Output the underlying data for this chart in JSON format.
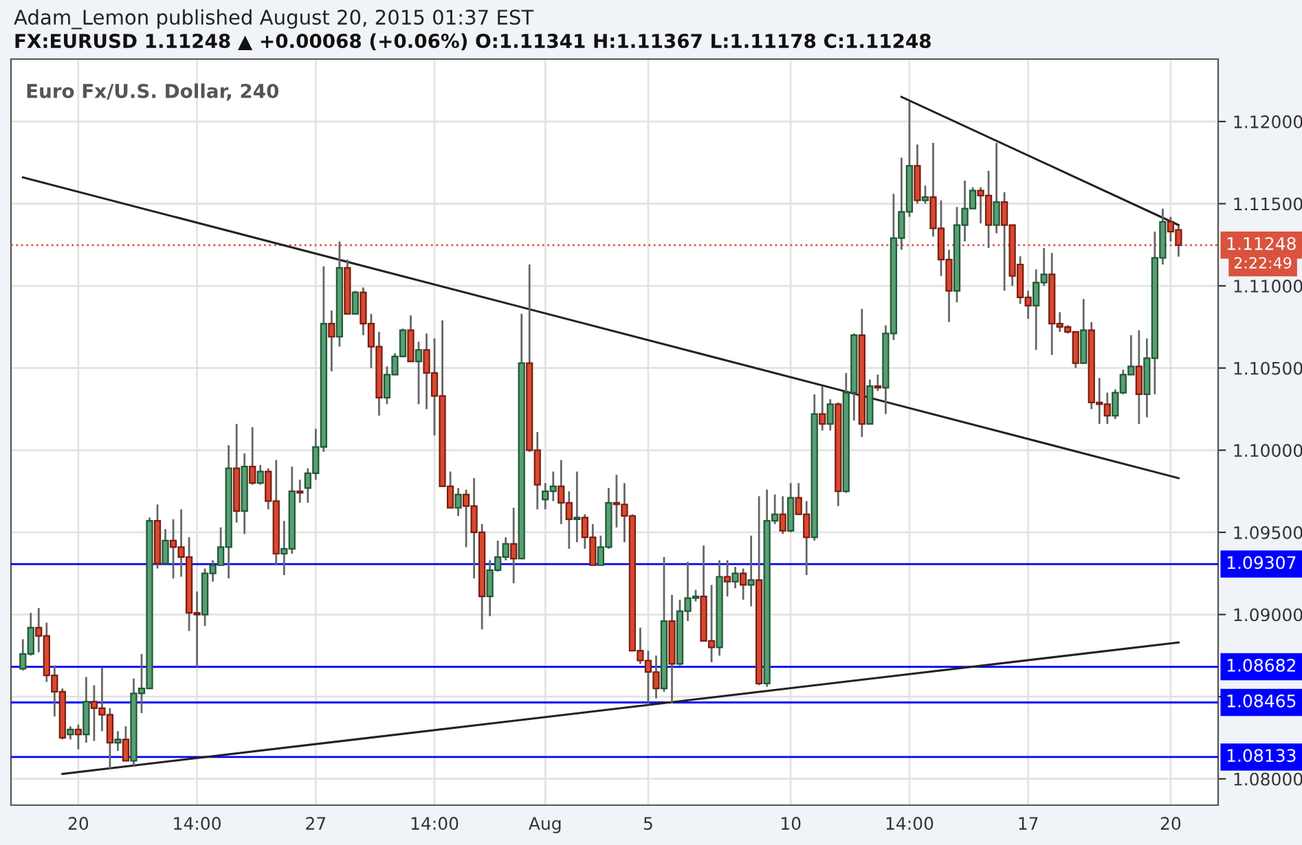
{
  "chart_data": {
    "type": "candlestick",
    "title": "Adam_Lemon published August 20, 2015 01:37 EST",
    "subtitle": "FX:EURUSD 1.11248 ▲ +0.00068 (+0.06%) O:1.11341 H:1.11367 L:1.11178 C:1.11248",
    "annotations": [
      "Euro Fx/U.S. Dollar, 240",
      "2:22:49"
    ],
    "categories": [
      null,
      null,
      null,
      null,
      null,
      null,
      null,
      "20",
      null,
      null,
      null,
      null,
      null,
      null,
      null,
      null,
      null,
      null,
      null,
      null,
      null,
      null,
      "14:00",
      null,
      null,
      null,
      null,
      null,
      null,
      null,
      null,
      null,
      null,
      null,
      null,
      null,
      null,
      "27",
      null,
      null,
      null,
      null,
      null,
      null,
      null,
      null,
      null,
      null,
      null,
      null,
      null,
      null,
      "14:00",
      null,
      null,
      null,
      null,
      null,
      null,
      null,
      null,
      null,
      null,
      null,
      null,
      null,
      "Aug",
      null,
      null,
      null,
      null,
      null,
      null,
      null,
      null,
      null,
      null,
      null,
      null,
      "5",
      null,
      null,
      null,
      null,
      null,
      null,
      null,
      null,
      null,
      null,
      null,
      null,
      null,
      null,
      null,
      null,
      null,
      "10",
      null,
      null,
      null,
      null,
      null,
      null,
      null,
      null,
      null,
      null,
      null,
      null,
      null,
      null,
      "14:00",
      null,
      null,
      null,
      null,
      null,
      null,
      null,
      null,
      null,
      null,
      null,
      null,
      null,
      null,
      "17",
      null,
      null,
      null,
      null,
      null,
      null,
      null,
      null,
      null,
      null,
      null,
      null,
      null,
      null,
      null,
      null,
      null,
      "20",
      null
    ],
    "ohlc": [
      [
        1.0867,
        1.0885,
        1.0866,
        1.0876
      ],
      [
        1.0876,
        1.0901,
        1.0875,
        1.0892
      ],
      [
        1.0892,
        1.0904,
        1.0877,
        1.0887
      ],
      [
        1.0887,
        1.0895,
        1.0859,
        1.0863
      ],
      [
        1.0863,
        1.0869,
        1.0838,
        1.0853
      ],
      [
        1.0853,
        1.0855,
        1.0824,
        1.0825
      ],
      [
        1.0827,
        1.0832,
        1.0824,
        1.083
      ],
      [
        1.083,
        1.0833,
        1.0818,
        1.0827
      ],
      [
        1.0827,
        1.0862,
        1.0822,
        1.0847
      ],
      [
        1.0847,
        1.0857,
        1.0823,
        1.0843
      ],
      [
        1.0843,
        1.0868,
        1.0829,
        1.0839
      ],
      [
        1.0839,
        1.0843,
        1.0806,
        1.0822
      ],
      [
        1.0822,
        1.0829,
        1.0817,
        1.0824
      ],
      [
        1.0824,
        1.0832,
        1.0811,
        1.0811
      ],
      [
        1.0811,
        1.0861,
        1.0808,
        1.0852
      ],
      [
        1.0852,
        1.0876,
        1.084,
        1.0855
      ],
      [
        1.0855,
        1.0959,
        1.0855,
        1.0957
      ],
      [
        1.0957,
        1.0967,
        1.0928,
        1.0931
      ],
      [
        1.0931,
        1.0952,
        1.0931,
        1.0945
      ],
      [
        1.0945,
        1.0958,
        1.0922,
        1.0941
      ],
      [
        1.0941,
        1.0964,
        1.0923,
        1.0935
      ],
      [
        1.0935,
        1.0947,
        1.089,
        1.0901
      ],
      [
        1.0901,
        1.0914,
        1.0868,
        1.09
      ],
      [
        1.09,
        1.0928,
        1.0893,
        1.0925
      ],
      [
        1.0925,
        1.0933,
        1.092,
        1.093
      ],
      [
        1.093,
        1.0953,
        1.093,
        1.0941
      ],
      [
        1.0941,
        1.1003,
        1.0922,
        1.0989
      ],
      [
        1.0989,
        1.1016,
        1.0956,
        1.0963
      ],
      [
        1.0963,
        1.0998,
        1.0949,
        1.099
      ],
      [
        1.099,
        1.1014,
        1.0979,
        1.098
      ],
      [
        1.098,
        1.0991,
        1.0979,
        1.0987
      ],
      [
        1.0987,
        1.0989,
        1.0964,
        1.0969
      ],
      [
        1.0969,
        1.0994,
        1.093,
        1.0937
      ],
      [
        1.0937,
        1.0957,
        1.0924,
        1.094
      ],
      [
        1.094,
        1.099,
        1.0937,
        1.0975
      ],
      [
        1.0975,
        1.0982,
        1.0968,
        1.0974
      ],
      [
        1.0977,
        1.0989,
        1.0968,
        1.0986
      ],
      [
        1.0986,
        1.1013,
        1.0982,
        1.1002
      ],
      [
        1.1002,
        1.1112,
        1.0999,
        1.1077
      ],
      [
        1.1077,
        1.1085,
        1.1048,
        1.1069
      ],
      [
        1.1069,
        1.1127,
        1.1063,
        1.1111
      ],
      [
        1.1111,
        1.1116,
        1.1083,
        1.1083
      ],
      [
        1.1083,
        1.1097,
        1.1083,
        1.1096
      ],
      [
        1.1096,
        1.1099,
        1.107,
        1.1077
      ],
      [
        1.1077,
        1.1083,
        1.105,
        1.1063
      ],
      [
        1.1063,
        1.1072,
        1.1021,
        1.1032
      ],
      [
        1.1032,
        1.1051,
        1.1028,
        1.1046
      ],
      [
        1.1046,
        1.1059,
        1.1046,
        1.1057
      ],
      [
        1.1057,
        1.1074,
        1.1057,
        1.1073
      ],
      [
        1.1073,
        1.1082,
        1.1054,
        1.1054
      ],
      [
        1.1054,
        1.1066,
        1.1028,
        1.1061
      ],
      [
        1.1061,
        1.1071,
        1.1025,
        1.1047
      ],
      [
        1.1047,
        1.1068,
        1.1009,
        1.1033
      ],
      [
        1.1033,
        1.1079,
        1.0978,
        1.0978
      ],
      [
        1.0978,
        1.0987,
        1.0965,
        1.0965
      ],
      [
        1.0965,
        1.0977,
        1.096,
        1.0973
      ],
      [
        1.0973,
        1.0976,
        1.0941,
        1.0966
      ],
      [
        1.0966,
        1.0983,
        1.0922,
        1.095
      ],
      [
        1.095,
        1.0955,
        1.0891,
        1.0911
      ],
      [
        1.0911,
        1.0933,
        1.0899,
        1.0927
      ],
      [
        1.0927,
        1.0945,
        1.0926,
        1.0935
      ],
      [
        1.0935,
        1.0947,
        1.0933,
        1.0943
      ],
      [
        1.0943,
        1.0965,
        1.0919,
        1.0934
      ],
      [
        1.0934,
        1.1083,
        1.0934,
        1.1053
      ],
      [
        1.1053,
        1.1113,
        1.0999,
        1.1
      ],
      [
        1.1,
        1.1011,
        1.0964,
        1.0979
      ],
      [
        1.097,
        1.098,
        1.0964,
        1.0975
      ],
      [
        1.0975,
        1.0987,
        1.0969,
        1.0978
      ],
      [
        1.0978,
        1.0994,
        1.0955,
        1.0968
      ],
      [
        1.0968,
        1.0975,
        1.094,
        1.0958
      ],
      [
        1.0958,
        1.0987,
        1.0944,
        1.0959
      ],
      [
        1.0959,
        1.0961,
        1.094,
        1.0947
      ],
      [
        1.0947,
        1.0955,
        1.093,
        1.093
      ],
      [
        1.093,
        1.0948,
        1.093,
        1.0941
      ],
      [
        1.0941,
        1.0977,
        1.094,
        1.0968
      ],
      [
        1.0968,
        1.0985,
        1.0953,
        1.0967
      ],
      [
        1.0967,
        1.098,
        1.0944,
        1.096
      ],
      [
        1.096,
        1.0961,
        1.0878,
        1.0878
      ],
      [
        1.0878,
        1.0892,
        1.087,
        1.0872
      ],
      [
        1.0872,
        1.0878,
        1.0846,
        1.0865
      ],
      [
        1.0865,
        1.0875,
        1.0849,
        1.0855
      ],
      [
        1.0855,
        1.0935,
        1.0853,
        1.0896
      ],
      [
        1.0896,
        1.0912,
        1.0846,
        1.087
      ],
      [
        1.087,
        1.0909,
        1.0869,
        1.0902
      ],
      [
        1.0902,
        1.0932,
        1.0896,
        1.091
      ],
      [
        1.091,
        1.0915,
        1.0908,
        1.0911
      ],
      [
        1.0911,
        1.0942,
        1.0884,
        1.0884
      ],
      [
        1.0884,
        1.0918,
        1.0871,
        1.088
      ],
      [
        1.088,
        1.0933,
        1.0875,
        1.0923
      ],
      [
        1.0923,
        1.0933,
        1.0911,
        1.092
      ],
      [
        1.092,
        1.0929,
        1.0916,
        1.0925
      ],
      [
        1.0925,
        1.0928,
        1.0909,
        1.0918
      ],
      [
        1.0918,
        1.0948,
        1.0905,
        1.0921
      ],
      [
        1.0921,
        1.0972,
        1.0857,
        1.0858
      ],
      [
        1.0858,
        1.0976,
        1.0856,
        1.0957
      ],
      [
        1.0957,
        1.0973,
        1.0955,
        1.0961
      ],
      [
        1.0961,
        1.0972,
        1.0949,
        1.0951
      ],
      [
        1.0951,
        1.098,
        1.095,
        1.0971
      ],
      [
        1.0971,
        1.098,
        1.0961,
        1.0961
      ],
      [
        1.0961,
        1.0969,
        1.0924,
        1.0947
      ],
      [
        1.0947,
        1.1034,
        1.0945,
        1.1022
      ],
      [
        1.1022,
        1.1039,
        1.1012,
        1.1016
      ],
      [
        1.1016,
        1.1031,
        1.1012,
        1.1028
      ],
      [
        1.1028,
        1.1029,
        1.0966,
        1.0975
      ],
      [
        1.0975,
        1.1047,
        1.0974,
        1.1035
      ],
      [
        1.1035,
        1.1071,
        1.1018,
        1.107
      ],
      [
        1.107,
        1.1086,
        1.1008,
        1.1016
      ],
      [
        1.1016,
        1.1043,
        1.1016,
        1.1039
      ],
      [
        1.1039,
        1.1046,
        1.1036,
        1.1038
      ],
      [
        1.1038,
        1.1076,
        1.1022,
        1.1071
      ],
      [
        1.1071,
        1.1156,
        1.1067,
        1.1129
      ],
      [
        1.1129,
        1.1178,
        1.1122,
        1.1145
      ],
      [
        1.1145,
        1.1212,
        1.1142,
        1.1173
      ],
      [
        1.1173,
        1.1186,
        1.115,
        1.1152
      ],
      [
        1.1152,
        1.1161,
        1.115,
        1.1154
      ],
      [
        1.1154,
        1.1187,
        1.113,
        1.1135
      ],
      [
        1.1135,
        1.1152,
        1.1106,
        1.1116
      ],
      [
        1.1116,
        1.1122,
        1.1078,
        1.1097
      ],
      [
        1.1097,
        1.1148,
        1.109,
        1.1137
      ],
      [
        1.1137,
        1.1164,
        1.1127,
        1.1147
      ],
      [
        1.1147,
        1.116,
        1.1147,
        1.1158
      ],
      [
        1.1158,
        1.116,
        1.1138,
        1.1155
      ],
      [
        1.1155,
        1.117,
        1.1123,
        1.1137
      ],
      [
        1.1137,
        1.1187,
        1.1132,
        1.1151
      ],
      [
        1.1151,
        1.1157,
        1.1097,
        1.1137
      ],
      [
        1.1137,
        1.1137,
        1.11,
        1.1106
      ],
      [
        1.1113,
        1.1118,
        1.1089,
        1.1093
      ],
      [
        1.1093,
        1.1097,
        1.108,
        1.1088
      ],
      [
        1.1088,
        1.111,
        1.1061,
        1.1102
      ],
      [
        1.1102,
        1.1123,
        1.11,
        1.1107
      ],
      [
        1.1107,
        1.112,
        1.1058,
        1.1077
      ],
      [
        1.1077,
        1.1084,
        1.1072,
        1.1075
      ],
      [
        1.1075,
        1.1076,
        1.1071,
        1.1072
      ],
      [
        1.1072,
        1.1072,
        1.105,
        1.1053
      ],
      [
        1.1053,
        1.1092,
        1.1053,
        1.1073
      ],
      [
        1.1073,
        1.1078,
        1.1025,
        1.1029
      ],
      [
        1.1029,
        1.1044,
        1.1016,
        1.1028
      ],
      [
        1.1028,
        1.1035,
        1.1016,
        1.1021
      ],
      [
        1.1021,
        1.1037,
        1.1019,
        1.1035
      ],
      [
        1.1035,
        1.1049,
        1.1034,
        1.1046
      ],
      [
        1.1046,
        1.107,
        1.1046,
        1.1051
      ],
      [
        1.1051,
        1.1073,
        1.1016,
        1.1034
      ],
      [
        1.1034,
        1.1068,
        1.102,
        1.1056
      ],
      [
        1.1056,
        1.1133,
        1.1034,
        1.1117
      ],
      [
        1.1117,
        1.1147,
        1.1113,
        1.1139
      ],
      [
        1.1139,
        1.1142,
        1.1127,
        1.1133
      ],
      [
        1.11341,
        1.11367,
        1.11178,
        1.11248
      ]
    ],
    "colors": [
      "#5a9e76",
      "#5a9e76",
      "#d9492f",
      "#d9492f",
      "#d9492f",
      "#d9492f",
      "#5a9e76",
      "#d9492f",
      "#5a9e76",
      "#d9492f",
      "#d9492f",
      "#d9492f",
      "#5a9e76",
      "#d9492f",
      "#5a9e76",
      "#5a9e76",
      "#5a9e76",
      "#d9492f",
      "#5a9e76",
      "#d9492f",
      "#d9492f",
      "#d9492f",
      "#d9492f",
      "#5a9e76",
      "#5a9e76",
      "#5a9e76",
      "#5a9e76",
      "#d9492f",
      "#5a9e76",
      "#d9492f",
      "#5a9e76",
      "#d9492f",
      "#d9492f",
      "#5a9e76",
      "#5a9e76",
      "#d9492f",
      "#5a9e76",
      "#5a9e76",
      "#5a9e76",
      "#d9492f",
      "#5a9e76",
      "#d9492f",
      "#5a9e76",
      "#d9492f",
      "#d9492f",
      "#d9492f",
      "#5a9e76",
      "#5a9e76",
      "#5a9e76",
      "#d9492f",
      "#5a9e76",
      "#d9492f",
      "#d9492f",
      "#d9492f",
      "#d9492f",
      "#5a9e76",
      "#d9492f",
      "#d9492f",
      "#d9492f",
      "#5a9e76",
      "#5a9e76",
      "#5a9e76",
      "#d9492f",
      "#5a9e76",
      "#d9492f",
      "#d9492f",
      "#5a9e76",
      "#5a9e76",
      "#d9492f",
      "#d9492f",
      "#5a9e76",
      "#d9492f",
      "#d9492f",
      "#5a9e76",
      "#5a9e76",
      "#d9492f",
      "#d9492f",
      "#d9492f",
      "#d9492f",
      "#d9492f",
      "#d9492f",
      "#5a9e76",
      "#d9492f",
      "#5a9e76",
      "#5a9e76",
      "#5a9e76",
      "#d9492f",
      "#d9492f",
      "#5a9e76",
      "#d9492f",
      "#5a9e76",
      "#d9492f",
      "#5a9e76",
      "#d9492f",
      "#5a9e76",
      "#5a9e76",
      "#d9492f",
      "#5a9e76",
      "#d9492f",
      "#d9492f",
      "#5a9e76",
      "#d9492f",
      "#5a9e76",
      "#d9492f",
      "#5a9e76",
      "#5a9e76",
      "#d9492f",
      "#5a9e76",
      "#d9492f",
      "#5a9e76",
      "#5a9e76",
      "#5a9e76",
      "#5a9e76",
      "#d9492f",
      "#5a9e76",
      "#d9492f",
      "#d9492f",
      "#d9492f",
      "#5a9e76",
      "#5a9e76",
      "#5a9e76",
      "#d9492f",
      "#d9492f",
      "#5a9e76",
      "#d9492f",
      "#d9492f",
      "#d9492f",
      "#d9492f",
      "#5a9e76",
      "#5a9e76",
      "#d9492f",
      "#d9492f",
      "#d9492f",
      "#d9492f",
      "#5a9e76",
      "#d9492f",
      "#d9492f",
      "#d9492f",
      "#5a9e76",
      "#5a9e76",
      "#5a9e76",
      "#d9492f",
      "#5a9e76",
      "#5a9e76",
      "#5a9e76",
      "#d9492f",
      "#d9492f"
    ],
    "series": [
      {
        "type": "line",
        "color": "#222222",
        "values": [
          1.1166,
          null,
          null,
          null,
          null,
          null,
          null,
          null,
          null,
          null,
          null,
          null,
          null,
          null,
          null,
          null,
          null,
          null,
          null,
          null,
          null,
          null,
          null,
          null,
          null,
          null,
          null,
          null,
          null,
          null,
          null,
          null,
          null,
          null,
          null,
          null,
          null,
          null,
          null,
          null,
          null,
          null,
          null,
          null,
          null,
          null,
          null,
          null,
          null,
          null,
          null,
          null,
          null,
          null,
          null,
          null,
          null,
          null,
          null,
          null,
          null,
          null,
          null,
          null,
          null,
          null,
          null,
          null,
          null,
          null,
          null,
          null,
          null,
          null,
          null,
          null,
          null,
          null,
          null,
          null,
          null,
          null,
          null,
          null,
          null,
          null,
          null,
          null,
          null,
          null,
          null,
          null,
          null,
          null,
          null,
          null,
          null,
          null,
          null,
          null,
          null,
          null,
          null,
          null,
          null,
          null,
          null,
          null,
          null,
          null,
          null,
          null,
          null,
          null,
          null,
          null,
          null,
          null,
          null,
          null,
          null,
          null,
          null,
          null,
          null,
          null,
          null,
          null,
          null,
          null,
          null,
          null,
          null,
          null,
          null,
          null,
          null,
          null,
          null,
          null,
          null,
          null,
          null,
          null,
          null,
          null,
          1.0983
        ]
      },
      {
        "type": "line",
        "color": "#222222",
        "values": [
          null,
          null,
          null,
          null,
          null,
          null,
          null,
          null,
          null,
          null,
          null,
          null,
          null,
          null,
          null,
          null,
          null,
          null,
          null,
          null,
          null,
          null,
          null,
          null,
          null,
          null,
          null,
          null,
          null,
          null,
          null,
          null,
          null,
          null,
          null,
          null,
          null,
          null,
          null,
          null,
          null,
          null,
          null,
          null,
          null,
          null,
          null,
          null,
          null,
          null,
          null,
          null,
          null,
          null,
          null,
          null,
          null,
          null,
          null,
          null,
          null,
          null,
          null,
          null,
          null,
          null,
          null,
          null,
          null,
          null,
          null,
          null,
          null,
          null,
          null,
          null,
          null,
          null,
          null,
          null,
          null,
          null,
          null,
          null,
          null,
          null,
          null,
          null,
          null,
          null,
          null,
          null,
          null,
          null,
          null,
          null,
          null,
          null,
          null,
          null,
          null,
          null,
          null,
          null,
          null,
          null,
          null,
          null,
          null,
          null,
          null,
          1.1215,
          null,
          null,
          null,
          null,
          null,
          null,
          null,
          null,
          null,
          null,
          null,
          null,
          null,
          null,
          null,
          null,
          null,
          null,
          null,
          null,
          null,
          null,
          null,
          null,
          null,
          null,
          null,
          null,
          null,
          null,
          null,
          null,
          null,
          null,
          1.1137
        ]
      },
      {
        "type": "line",
        "color": "#222222",
        "values": [
          null,
          null,
          null,
          null,
          null,
          1.0803,
          null,
          null,
          null,
          null,
          null,
          null,
          null,
          null,
          null,
          null,
          null,
          null,
          null,
          null,
          null,
          null,
          null,
          null,
          null,
          null,
          null,
          null,
          null,
          null,
          null,
          null,
          null,
          null,
          null,
          null,
          null,
          null,
          null,
          null,
          null,
          null,
          null,
          null,
          null,
          null,
          null,
          null,
          null,
          null,
          null,
          null,
          null,
          null,
          null,
          null,
          null,
          null,
          null,
          null,
          null,
          null,
          null,
          null,
          null,
          null,
          null,
          null,
          null,
          null,
          null,
          null,
          null,
          null,
          null,
          null,
          null,
          null,
          null,
          null,
          null,
          null,
          null,
          null,
          null,
          null,
          null,
          null,
          null,
          null,
          null,
          null,
          null,
          null,
          null,
          null,
          null,
          null,
          null,
          null,
          null,
          null,
          null,
          null,
          null,
          null,
          null,
          null,
          null,
          null,
          null,
          null,
          null,
          null,
          null,
          null,
          null,
          null,
          null,
          null,
          null,
          null,
          null,
          null,
          null,
          null,
          null,
          null,
          null,
          null,
          null,
          null,
          null,
          null,
          null,
          null,
          null,
          null,
          null,
          null,
          null,
          null,
          null,
          null,
          null,
          null,
          1.0883
        ]
      }
    ],
    "ylim": [
      1.0784,
      1.1238
    ],
    "yticks": [
      {
        "value": 1.08,
        "label": "1.08000"
      },
      {
        "value": 1.085,
        "label": null
      },
      {
        "value": 1.09,
        "label": "1.09000"
      },
      {
        "value": 1.095,
        "label": "1.09500"
      },
      {
        "value": 1.1,
        "label": "1.10000"
      },
      {
        "value": 1.105,
        "label": "1.10500"
      },
      {
        "value": 1.11,
        "label": "1.11000"
      },
      {
        "value": 1.115,
        "label": "1.11500"
      },
      {
        "value": 1.12,
        "label": "1.12000"
      }
    ],
    "ref_lines": [
      {
        "axis": "y",
        "value": 1.09307,
        "label": "1.09307",
        "color": "#0000ff",
        "line_style": "solid"
      },
      {
        "axis": "y",
        "value": 1.08682,
        "label": "1.08682",
        "color": "#0000ff",
        "line_style": "solid"
      },
      {
        "axis": "y",
        "value": 1.08465,
        "label": "1.08465",
        "color": "#0000ff",
        "line_style": "solid"
      },
      {
        "axis": "y",
        "value": 1.08133,
        "label": "1.08133",
        "color": "#0000ff",
        "line_style": "solid"
      },
      {
        "axis": "y",
        "value": 1.11248,
        "label": "1.11248",
        "color": "#d9533e",
        "line_style": "dotted"
      }
    ],
    "grid": true
  }
}
